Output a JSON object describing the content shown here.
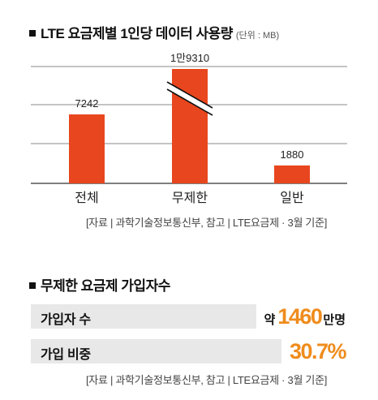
{
  "colors": {
    "bar": "#e8461e",
    "accent": "#ef8c1d",
    "grid": "#8a8a8a"
  },
  "section1": {
    "title": "LTE 요금제별 1인당 데이터 사용량",
    "unit": "(단위 : MB)"
  },
  "chart_data": {
    "type": "bar",
    "title": "LTE 요금제별 1인당 데이터 사용량",
    "unit": "(단위 : MB)",
    "categories": [
      "전체",
      "무제한",
      "일반"
    ],
    "values": [
      7242,
      19310,
      1880
    ],
    "value_labels": [
      "7242",
      "1만9310",
      "1880"
    ],
    "axis_break": {
      "bar": "무제한"
    },
    "grid": true
  },
  "source1": "[자료 | 과학기술정보통신부, 참고 | LTE요금제 · 3월 기준]",
  "section2": {
    "title": "무제한 요금제 가입자수"
  },
  "stats": [
    {
      "label": "가입자 수",
      "prefix": "약",
      "value": "1460",
      "suffix": "만명"
    },
    {
      "label": "가입 비중",
      "prefix": "",
      "value": "30.7%",
      "suffix": ""
    }
  ],
  "source2": "[자료 | 과학기술정보통신부, 참고 | LTE요금제 · 3월 기준]"
}
